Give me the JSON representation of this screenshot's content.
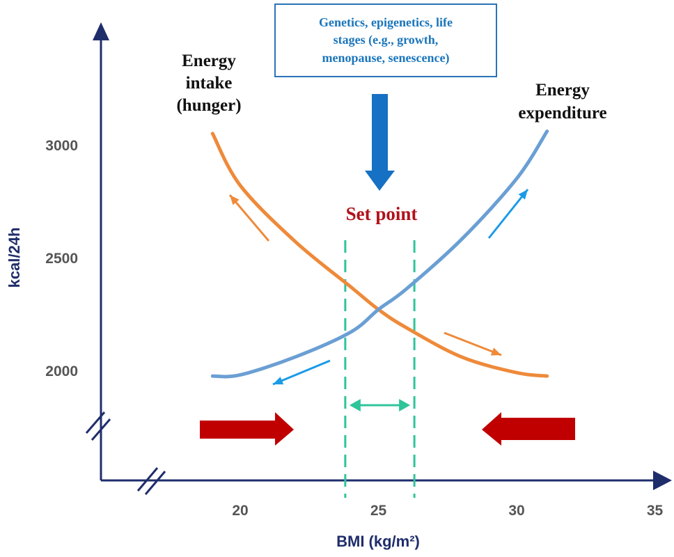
{
  "chart_data": {
    "type": "line",
    "xlabel": "BMI (kg/m²)",
    "ylabel": "kcal/24h",
    "x_ticks": [
      20,
      25,
      30,
      35
    ],
    "y_ticks": [
      2000,
      2500,
      3000
    ],
    "series": [
      {
        "name": "Energy intake (hunger)",
        "color": "#ee8a3a",
        "x": [
          19,
          20,
          22,
          24,
          25,
          26,
          28,
          30,
          31.1
        ],
        "y": [
          3050,
          2820,
          2570,
          2370,
          2270,
          2190,
          2060,
          1990,
          1975
        ]
      },
      {
        "name": "Energy expenditure",
        "color": "#6a9fd4",
        "x": [
          19,
          20,
          22,
          24,
          25,
          26,
          28,
          30,
          31.1
        ],
        "y": [
          1975,
          1980,
          2060,
          2170,
          2270,
          2360,
          2580,
          2850,
          3060
        ]
      }
    ],
    "set_point_range": [
      23.8,
      26.3
    ],
    "annotations": {
      "box_text": [
        "Genetics, epigenetics, life",
        "stages (e.g., growth,",
        "menopause, senescence)"
      ],
      "set_point": "Set point",
      "intake_label": [
        "Energy",
        "intake",
        "(hunger)"
      ],
      "expenditure_label": [
        "Energy",
        "expenditure"
      ]
    },
    "colors": {
      "axis": "#1f2d6b",
      "set_point": "#b0121b",
      "red_arrows": "#c00000",
      "dashed": "#2fc49a",
      "box_arrow": "#1670c4"
    }
  }
}
